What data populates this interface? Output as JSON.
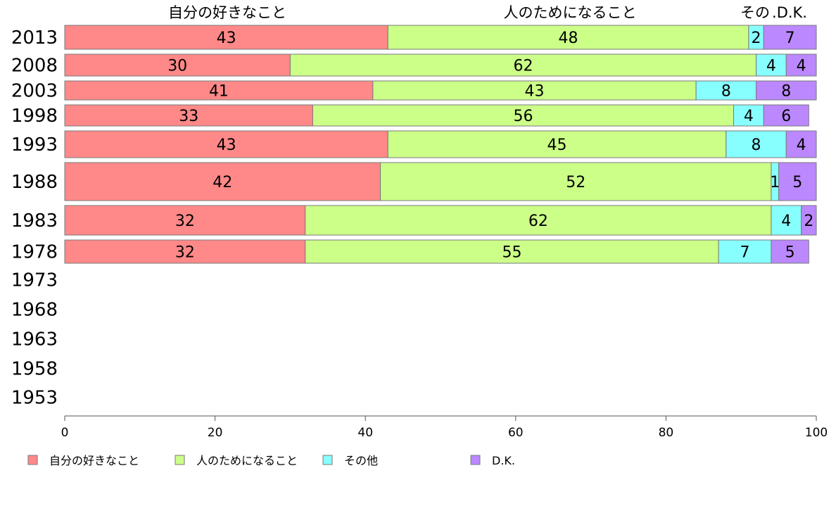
{
  "chart_data": {
    "type": "bar",
    "orientation": "horizontal",
    "stacked": true,
    "title": "",
    "xlabel": "",
    "ylabel": "",
    "xlim": [
      0,
      100
    ],
    "x_ticks": [
      "0",
      "20",
      "40",
      "60",
      "80",
      "100"
    ],
    "grid": false,
    "legend_position": "bottom",
    "category_headers": [
      "自分の好きなこと",
      "人のためになること",
      "その",
      ".D.K."
    ],
    "categories": [
      "2013",
      "2008",
      "2003",
      "1998",
      "1993",
      "1988",
      "1983",
      "1978",
      "1973",
      "1968",
      "1963",
      "1958",
      "1953"
    ],
    "series": [
      {
        "name": "自分の好きなこと",
        "color": "#ff8888",
        "values": [
          43,
          30,
          41,
          33,
          43,
          42,
          32,
          32,
          null,
          null,
          null,
          null,
          null
        ]
      },
      {
        "name": "人のためになること",
        "color": "#ccff88",
        "values": [
          48,
          62,
          43,
          56,
          45,
          52,
          62,
          55,
          null,
          null,
          null,
          null,
          null
        ]
      },
      {
        "name": "その他",
        "color": "#88ffff",
        "values": [
          2,
          4,
          8,
          4,
          8,
          1,
          4,
          7,
          null,
          null,
          null,
          null,
          null
        ]
      },
      {
        "name": "D.K.",
        "color": "#bb88ff",
        "values": [
          7,
          4,
          8,
          6,
          4,
          5,
          2,
          5,
          null,
          null,
          null,
          null,
          null
        ]
      }
    ]
  }
}
